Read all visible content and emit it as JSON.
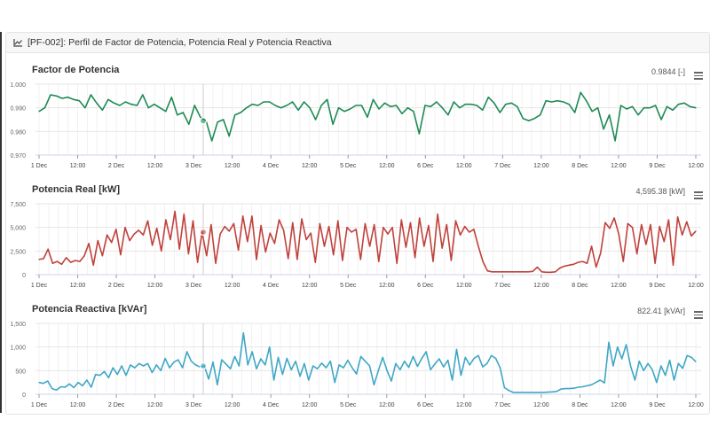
{
  "panel": {
    "title": "[PF-002]: Perfil de Factor de Potencia, Potencia Real y Potencia Reactiva",
    "icon": "line-chart-icon"
  },
  "chart_data": [
    {
      "type": "line",
      "title": "Factor de Potencia",
      "current_value": "0.9844 [-]",
      "color": "#1e8a55",
      "ylabel": "",
      "ylim": [
        0.97,
        1.0
      ],
      "yticks": [
        "0.970",
        "0.980",
        "0.990",
        "1.000"
      ],
      "ytick_values": [
        0.97,
        0.98,
        0.99,
        1.0
      ],
      "xticks": [
        "1 Dec",
        "12:00",
        "2 Dec",
        "12:00",
        "3 Dec",
        "12:00",
        "4 Dec",
        "12:00",
        "5 Dec",
        "12:00",
        "6 Dec",
        "12:00",
        "7 Dec",
        "12:00",
        "8 Dec",
        "12:00",
        "9 Dec",
        "12:00"
      ],
      "x_unit": "hours since 1 Dec 00:00",
      "x_step_hours": 2,
      "hover_marker_hour": 51,
      "values": [
        0.9885,
        0.99,
        0.9955,
        0.995,
        0.994,
        0.9945,
        0.9935,
        0.993,
        0.99,
        0.9955,
        0.992,
        0.989,
        0.9935,
        0.992,
        0.991,
        0.9925,
        0.9915,
        0.991,
        0.9955,
        0.99,
        0.9915,
        0.99,
        0.9885,
        0.9945,
        0.987,
        0.988,
        0.983,
        0.991,
        0.986,
        0.9845,
        0.976,
        0.984,
        0.985,
        0.978,
        0.987,
        0.988,
        0.99,
        0.9915,
        0.991,
        0.9925,
        0.9925,
        0.991,
        0.99,
        0.991,
        0.9925,
        0.989,
        0.9925,
        0.99,
        0.985,
        0.991,
        0.9935,
        0.983,
        0.99,
        0.9885,
        0.9895,
        0.991,
        0.991,
        0.986,
        0.9935,
        0.9895,
        0.992,
        0.9905,
        0.991,
        0.9875,
        0.99,
        0.9885,
        0.979,
        0.991,
        0.9905,
        0.9925,
        0.99,
        0.987,
        0.9925,
        0.99,
        0.9915,
        0.9915,
        0.991,
        0.989,
        0.9945,
        0.992,
        0.988,
        0.9915,
        0.992,
        0.9905,
        0.9855,
        0.9845,
        0.9855,
        0.987,
        0.993,
        0.9925,
        0.993,
        0.9925,
        0.9915,
        0.988,
        0.9965,
        0.993,
        0.9885,
        0.99,
        0.981,
        0.987,
        0.976,
        0.991,
        0.9895,
        0.9905,
        0.987,
        0.99,
        0.99,
        0.991,
        0.985,
        0.9905,
        0.989,
        0.9915,
        0.992,
        0.9905,
        0.99
      ]
    },
    {
      "type": "line",
      "title": "Potencia Real [kW]",
      "current_value": "4,595.38 [kW]",
      "color": "#c0413b",
      "ylabel": "",
      "ylim": [
        0,
        7500
      ],
      "yticks": [
        "0",
        "2,500",
        "5,000",
        "7,500"
      ],
      "ytick_values": [
        0,
        2500,
        5000,
        7500
      ],
      "xticks": [
        "1 Dec",
        "12:00",
        "2 Dec",
        "12:00",
        "3 Dec",
        "12:00",
        "4 Dec",
        "12:00",
        "5 Dec",
        "12:00",
        "6 Dec",
        "12:00",
        "7 Dec",
        "12:00",
        "8 Dec",
        "12:00",
        "9 Dec",
        "12:00"
      ],
      "x_unit": "hours since 1 Dec 00:00",
      "x_step_hours": 2,
      "hover_marker_hour": 51,
      "values": [
        1600,
        1700,
        2700,
        1200,
        1400,
        1100,
        1800,
        1300,
        1500,
        1400,
        2000,
        3300,
        1000,
        3600,
        2000,
        4200,
        3400,
        4800,
        2100,
        5000,
        3600,
        4300,
        4700,
        4200,
        5700,
        3100,
        4900,
        2500,
        5800,
        3700,
        6700,
        2700,
        6400,
        2200,
        5700,
        1300,
        4500,
        2000,
        5300,
        1200,
        4300,
        5100,
        4600,
        5400,
        2600,
        6200,
        3500,
        6200,
        1600,
        5200,
        2400,
        4400,
        3300,
        5800,
        4700,
        1700,
        5500,
        1600,
        5900,
        3700,
        4400,
        1300,
        5400,
        3000,
        5100,
        2100,
        5700,
        1500,
        5000,
        4500,
        4800,
        1600,
        5400,
        3000,
        5300,
        1400,
        5000,
        4300,
        5000,
        1200,
        5800,
        2900,
        5500,
        1800,
        6000,
        3000,
        5200,
        1400,
        6400,
        2800,
        5300,
        1500,
        5700,
        4200,
        5100,
        4500,
        4800,
        3000,
        1400,
        400,
        300,
        300,
        300,
        300,
        300,
        300,
        300,
        300,
        300,
        350,
        800,
        300,
        250,
        250,
        300,
        700,
        900,
        1000,
        1100,
        1300,
        1400,
        1200,
        3000,
        800,
        2300,
        5500,
        4900,
        6000,
        4300,
        1400,
        5400,
        5000,
        2200,
        5300,
        3200,
        5300,
        1200,
        5100,
        3500,
        5800,
        1000,
        6100,
        4200,
        5600,
        4100,
        4600
      ]
    },
    {
      "type": "line",
      "title": "Potencia Reactiva [kVAr]",
      "current_value": "822.41 [kVAr]",
      "color": "#3fa7c6",
      "ylabel": "",
      "ylim": [
        0,
        1500
      ],
      "yticks": [
        "0",
        "500",
        "1,000",
        "1,500"
      ],
      "ytick_values": [
        0,
        500,
        1000,
        1500
      ],
      "xticks": [
        "1 Dec",
        "12:00",
        "2 Dec",
        "12:00",
        "3 Dec",
        "12:00",
        "4 Dec",
        "12:00",
        "5 Dec",
        "12:00",
        "6 Dec",
        "12:00",
        "7 Dec",
        "12:00",
        "8 Dec",
        "12:00",
        "9 Dec",
        "12:00"
      ],
      "x_unit": "hours since 1 Dec 00:00",
      "x_step_hours": 2,
      "hover_marker_hour": 51,
      "values": [
        250,
        230,
        280,
        120,
        90,
        160,
        150,
        220,
        140,
        250,
        180,
        300,
        150,
        420,
        400,
        480,
        350,
        560,
        420,
        600,
        400,
        620,
        560,
        650,
        600,
        650,
        460,
        620,
        500,
        760,
        560,
        680,
        730,
        560,
        900,
        700,
        620,
        580,
        600,
        320,
        680,
        200,
        730,
        640,
        540,
        800,
        600,
        1300,
        620,
        900,
        540,
        750,
        620,
        1000,
        300,
        780,
        420,
        760,
        520,
        700,
        380,
        650,
        300,
        600,
        540,
        660,
        560,
        700,
        250,
        620,
        560,
        720,
        560,
        430,
        800,
        700,
        600,
        200,
        500,
        780,
        500,
        280,
        650,
        520,
        700,
        570,
        800,
        590,
        760,
        900,
        520,
        640,
        750,
        580,
        720,
        300,
        950,
        400,
        780,
        620,
        760,
        820,
        580,
        650,
        820,
        760,
        560,
        140,
        80,
        40,
        40,
        40,
        40,
        40,
        40,
        40,
        40,
        45,
        50,
        60,
        110,
        120,
        120,
        130,
        150,
        160,
        180,
        200,
        250,
        300,
        240,
        1100,
        600,
        1000,
        750,
        1050,
        600,
        300,
        700,
        500,
        650,
        520,
        250,
        600,
        400,
        720,
        300,
        650,
        550,
        820,
        780,
        690
      ]
    }
  ]
}
